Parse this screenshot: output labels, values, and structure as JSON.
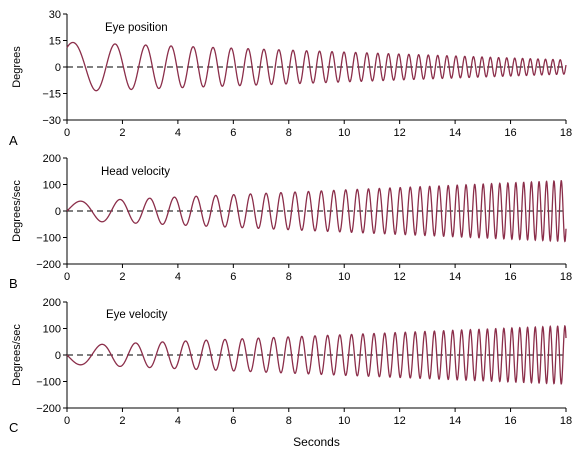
{
  "chart_data": [
    {
      "type": "line",
      "panel_label": "A",
      "title": "Eye position",
      "ylabel": "Degrees",
      "xlabel": "",
      "xlim": [
        0,
        18
      ],
      "ylim": [
        -30,
        30
      ],
      "xticks": [
        "0",
        "2",
        "4",
        "6",
        "8",
        "10",
        "12",
        "14",
        "16",
        "18"
      ],
      "yticks": [
        "30",
        "15",
        "0",
        "−15",
        "−30"
      ],
      "ytick_values": [
        30,
        15,
        0,
        -15,
        -30
      ],
      "reference_line": {
        "y": 0,
        "style": "dashed"
      },
      "series": [
        {
          "color": "#8b2e4a",
          "description_params": {
            "start_period_s": 2.1,
            "end_period_s": 0.26,
            "amp_start": 14,
            "amp_end": 4,
            "phase": 0.9
          }
        }
      ]
    },
    {
      "type": "line",
      "panel_label": "B",
      "title": "Head velocity",
      "ylabel": "Degrees/sec",
      "xlabel": "",
      "xlim": [
        0,
        18
      ],
      "ylim": [
        -200,
        200
      ],
      "xticks": [
        "0",
        "2",
        "4",
        "6",
        "8",
        "10",
        "12",
        "14",
        "16",
        "18"
      ],
      "yticks": [
        "200",
        "100",
        "0",
        "−100",
        "−200"
      ],
      "ytick_values": [
        200,
        100,
        0,
        -100,
        -200
      ],
      "reference_line": {
        "y": 0,
        "style": "dashed"
      },
      "series": [
        {
          "color": "#8b2e4a",
          "description_params": {
            "start_period_s": 2.1,
            "end_period_s": 0.26,
            "amp_start": 35,
            "amp_end": 115,
            "phase": 0.0
          }
        }
      ]
    },
    {
      "type": "line",
      "panel_label": "C",
      "title": "Eye velocity",
      "ylabel": "Degrees/sec",
      "xlabel": "Seconds",
      "xlim": [
        0,
        18
      ],
      "ylim": [
        -200,
        200
      ],
      "xticks": [
        "0",
        "2",
        "4",
        "6",
        "8",
        "10",
        "12",
        "14",
        "16",
        "18"
      ],
      "yticks": [
        "200",
        "100",
        "0",
        "−100",
        "−200"
      ],
      "ytick_values": [
        200,
        100,
        0,
        -100,
        -200
      ],
      "reference_line": {
        "y": 0,
        "style": "dashed"
      },
      "series": [
        {
          "color": "#8b2e4a",
          "description_params": {
            "start_period_s": 2.1,
            "end_period_s": 0.26,
            "amp_start": 35,
            "amp_end": 110,
            "phase": 3.14159
          }
        }
      ]
    }
  ]
}
